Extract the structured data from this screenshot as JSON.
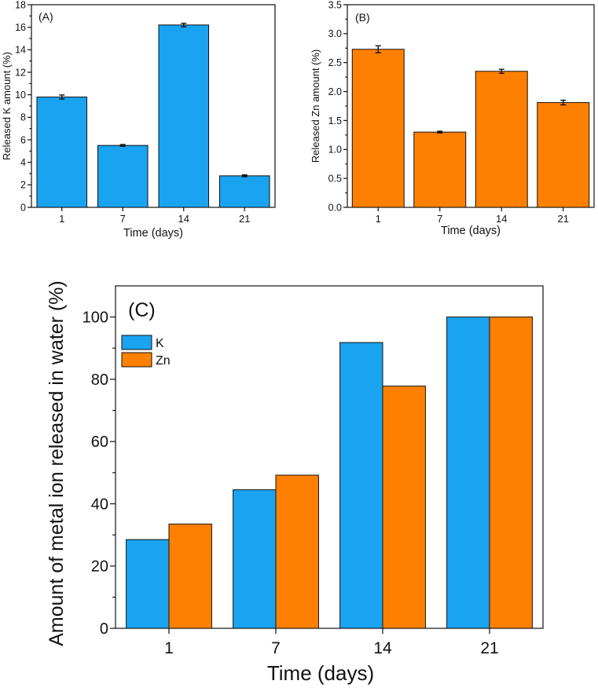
{
  "chart_data": [
    {
      "id": "A",
      "type": "bar",
      "panel_label": "(A)",
      "categories": [
        "1",
        "7",
        "14",
        "21"
      ],
      "values": [
        9.8,
        5.5,
        16.2,
        2.8
      ],
      "errors": [
        0.18,
        0.08,
        0.15,
        0.08
      ],
      "color": "#19a3f0",
      "xlabel": "Time (days)",
      "ylabel": "Released K amount (%)",
      "ylim": [
        0,
        18
      ],
      "yticks": [
        0,
        2,
        4,
        6,
        8,
        10,
        12,
        14,
        16,
        18
      ],
      "ytick_labels": [
        "0",
        "2",
        "4",
        "6",
        "8",
        "10",
        "12",
        "14",
        "16",
        "18"
      ]
    },
    {
      "id": "B",
      "type": "bar",
      "panel_label": "(B)",
      "categories": [
        "1",
        "7",
        "14",
        "21"
      ],
      "values": [
        2.73,
        1.3,
        2.35,
        1.81
      ],
      "errors": [
        0.06,
        0.015,
        0.035,
        0.04
      ],
      "color": "#ff8000",
      "xlabel": "Time (days)",
      "ylabel": "Released Zn amount (%)",
      "ylim": [
        0,
        3.5
      ],
      "yticks": [
        0,
        0.5,
        1,
        1.5,
        2,
        2.5,
        3,
        3.5
      ],
      "ytick_labels": [
        "0.0",
        "0.5",
        "1.0",
        "1.5",
        "2.0",
        "2.5",
        "3.0",
        "3.5"
      ]
    },
    {
      "id": "C",
      "type": "bar",
      "panel_label": "(C)",
      "categories": [
        "1",
        "7",
        "14",
        "21"
      ],
      "series": [
        {
          "name": "K",
          "values": [
            28.5,
            44.5,
            91.8,
            100
          ],
          "color": "#19a3f0"
        },
        {
          "name": "Zn",
          "values": [
            33.5,
            49.2,
            77.8,
            100
          ],
          "color": "#ff8000"
        }
      ],
      "legend_position": "top-left",
      "xlabel": "Time (days)",
      "ylabel": "Amount of metal ion released in water (%)",
      "ylim": [
        0,
        110
      ],
      "yticks": [
        0,
        20,
        40,
        60,
        80,
        100
      ],
      "ytick_labels": [
        "0",
        "20",
        "40",
        "60",
        "80",
        "100"
      ]
    }
  ]
}
